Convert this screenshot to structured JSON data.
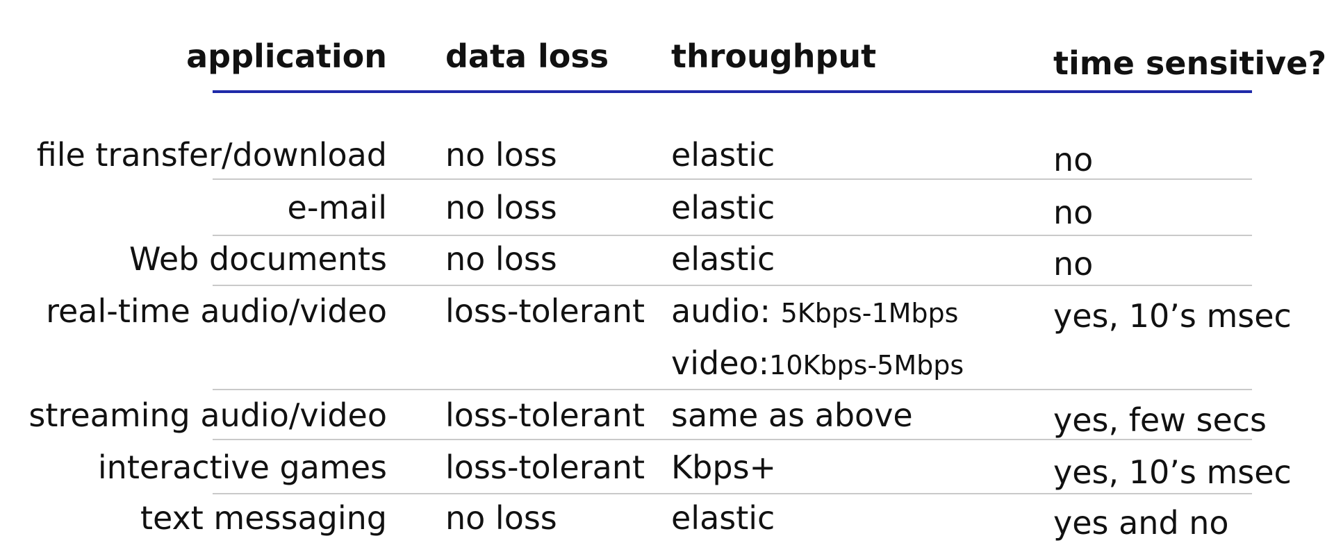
{
  "table": {
    "headers": {
      "application": "application",
      "data_loss": "data loss",
      "throughput": "throughput",
      "time_sensitive": "time sensitive?"
    },
    "rows": [
      {
        "application": "file transfer/download",
        "data_loss": "no loss",
        "throughput": "elastic",
        "time_sensitive": "no"
      },
      {
        "application": "e-mail",
        "data_loss": "no loss",
        "throughput": "elastic",
        "time_sensitive": "no"
      },
      {
        "application": "Web documents",
        "data_loss": "no loss",
        "throughput": "elastic",
        "time_sensitive": "no"
      },
      {
        "application": "real-time audio/video",
        "data_loss": "loss-tolerant",
        "throughput_lines": [
          {
            "label": "audio: ",
            "value": "5Kbps-1Mbps"
          },
          {
            "label": "video:",
            "value": "10Kbps-5Mbps"
          }
        ],
        "time_sensitive": "yes, 10’s msec"
      },
      {
        "application": "streaming audio/video",
        "data_loss": "loss-tolerant",
        "throughput": "same as above",
        "time_sensitive": "yes, few secs"
      },
      {
        "application": "interactive games",
        "data_loss": "loss-tolerant",
        "throughput": "Kbps+",
        "time_sensitive": "yes, 10’s msec"
      },
      {
        "application": "text messaging",
        "data_loss": "no loss",
        "throughput": "elastic",
        "time_sensitive": "yes and no"
      }
    ]
  },
  "colors": {
    "header_rule": "#1f2aa8",
    "row_rule": "#c9c9c9",
    "text": "#111111"
  }
}
